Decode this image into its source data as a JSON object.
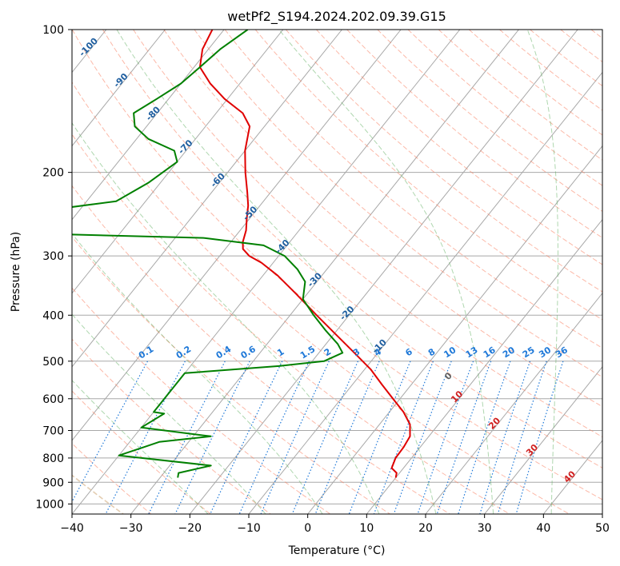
{
  "chart_data": {
    "type": "skew-t",
    "title": "wetPf2_S194.2024.202.09.39.G15",
    "xlabel": "Temperature (°C)",
    "ylabel": "Pressure (hPa)",
    "xlim": [
      -40,
      50
    ],
    "ylim": [
      1050,
      100
    ],
    "x_ticks": [
      -40,
      -30,
      -20,
      -10,
      0,
      10,
      20,
      30,
      40,
      50
    ],
    "y_ticks": [
      100,
      200,
      300,
      400,
      500,
      600,
      700,
      800,
      900,
      1000
    ],
    "grid": true,
    "colors": {
      "temperature": "#e00000",
      "dewpoint": "#008000",
      "dry_adiabat": "#fa8060",
      "moist_adiabat": "#60b060",
      "mixing_ratio": "#1e78d8",
      "isotherm_label": "#1f5fa0",
      "isotherm_label_warm": "#d02020",
      "grid": "#a8a8a8"
    },
    "series": [
      {
        "values": [
          {
            "p": 880,
            "t": 10.0
          },
          {
            "p": 860,
            "t": 9.5
          },
          {
            "p": 840,
            "t": 8.0
          },
          {
            "p": 800,
            "t": 7.3
          },
          {
            "p": 760,
            "t": 7.2
          },
          {
            "p": 720,
            "t": 6.8
          },
          {
            "p": 680,
            "t": 5.2
          },
          {
            "p": 640,
            "t": 2.4
          },
          {
            "p": 600,
            "t": -1.2
          },
          {
            "p": 560,
            "t": -5.0
          },
          {
            "p": 520,
            "t": -9.0
          },
          {
            "p": 480,
            "t": -14.0
          },
          {
            "p": 440,
            "t": -19.5
          },
          {
            "p": 400,
            "t": -25.5
          },
          {
            "p": 360,
            "t": -32.0
          },
          {
            "p": 330,
            "t": -37.5
          },
          {
            "p": 310,
            "t": -42.0
          },
          {
            "p": 300,
            "t": -45.0
          },
          {
            "p": 290,
            "t": -47.0
          },
          {
            "p": 280,
            "t": -48.0
          },
          {
            "p": 265,
            "t": -49.0
          },
          {
            "p": 250,
            "t": -50.5
          },
          {
            "p": 235,
            "t": -52.0
          },
          {
            "p": 220,
            "t": -54.0
          },
          {
            "p": 200,
            "t": -57.0
          },
          {
            "p": 180,
            "t": -60.0
          },
          {
            "p": 160,
            "t": -62.5
          },
          {
            "p": 150,
            "t": -65.5
          },
          {
            "p": 140,
            "t": -70.5
          },
          {
            "p": 130,
            "t": -75.0
          },
          {
            "p": 120,
            "t": -79.0
          },
          {
            "p": 110,
            "t": -81.0
          },
          {
            "p": 100,
            "t": -82.0
          }
        ]
      },
      {
        "values": [
          {
            "p": 880,
            "t": -27.0
          },
          {
            "p": 860,
            "t": -27.5
          },
          {
            "p": 830,
            "t": -23.0
          },
          {
            "p": 790,
            "t": -40.0
          },
          {
            "p": 760,
            "t": -37.0
          },
          {
            "p": 740,
            "t": -35.0
          },
          {
            "p": 720,
            "t": -27.0
          },
          {
            "p": 690,
            "t": -40.0
          },
          {
            "p": 645,
            "t": -38.0
          },
          {
            "p": 640,
            "t": -40.0
          },
          {
            "p": 530,
            "t": -40.0
          },
          {
            "p": 512,
            "t": -25.0
          },
          {
            "p": 500,
            "t": -18.0
          },
          {
            "p": 480,
            "t": -16.0
          },
          {
            "p": 460,
            "t": -18.0
          },
          {
            "p": 430,
            "t": -22.0
          },
          {
            "p": 400,
            "t": -26.0
          },
          {
            "p": 370,
            "t": -30.0
          },
          {
            "p": 340,
            "t": -32.0
          },
          {
            "p": 320,
            "t": -35.0
          },
          {
            "p": 300,
            "t": -39.0
          },
          {
            "p": 285,
            "t": -44.0
          },
          {
            "p": 275,
            "t": -55.0
          },
          {
            "p": 270,
            "t": -80.0
          },
          {
            "p": 245,
            "t": -90.0
          },
          {
            "p": 230,
            "t": -75.0
          },
          {
            "p": 210,
            "t": -72.0
          },
          {
            "p": 190,
            "t": -70.0
          },
          {
            "p": 180,
            "t": -72.0
          },
          {
            "p": 170,
            "t": -78.0
          },
          {
            "p": 160,
            "t": -82.0
          },
          {
            "p": 150,
            "t": -84.0
          },
          {
            "p": 140,
            "t": -82.0
          },
          {
            "p": 130,
            "t": -80.0
          },
          {
            "p": 120,
            "t": -79.0
          },
          {
            "p": 110,
            "t": -78.0
          },
          {
            "p": 100,
            "t": -76.0
          }
        ]
      }
    ],
    "mixing_ratio_labels": [
      "0.1",
      "0.2",
      "0.4",
      "0.6",
      "1",
      "1.5",
      "2",
      "3",
      "4",
      "6",
      "8",
      "10",
      "13",
      "16",
      "20",
      "25",
      "30",
      "36"
    ],
    "moist_adiabat_label": "0",
    "isotherm_labels": [
      "-100",
      "-90",
      "-80",
      "-70",
      "-60",
      "-50",
      "-40",
      "-30",
      "-20",
      "-10",
      "10",
      "20",
      "30",
      "40"
    ]
  }
}
